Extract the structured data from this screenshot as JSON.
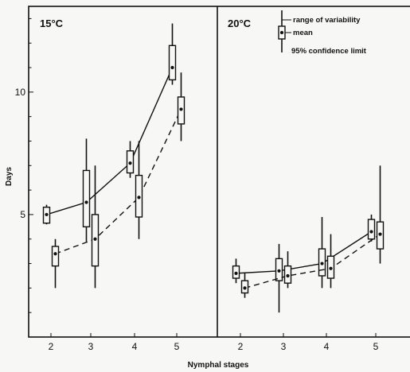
{
  "chart_data": {
    "type": "box",
    "xlabel": "Nymphal stages",
    "ylabel": "Days",
    "categories": [
      "2",
      "3",
      "4",
      "5"
    ],
    "yticks": [
      5,
      10
    ],
    "ylim": [
      0,
      13.5
    ],
    "legend": {
      "placement": "top-right of right panel",
      "range_label": "range of variability",
      "mean_label": "mean",
      "ci_label": "95% confidence limit"
    },
    "panels": [
      {
        "label": "15°C",
        "series": [
          {
            "line": "solid",
            "stats": [
              {
                "stage": "2",
                "min": 4.6,
                "max": 5.4,
                "ci_low": 4.65,
                "ci_high": 5.3,
                "mean": 5.0
              },
              {
                "stage": "3",
                "min": 3.9,
                "max": 8.1,
                "ci_low": 4.5,
                "ci_high": 6.8,
                "mean": 5.5
              },
              {
                "stage": "4",
                "min": 6.5,
                "max": 8.0,
                "ci_low": 6.7,
                "ci_high": 7.6,
                "mean": 7.1
              },
              {
                "stage": "5",
                "min": 10.3,
                "max": 12.8,
                "ci_low": 10.5,
                "ci_high": 11.9,
                "mean": 11.0
              }
            ]
          },
          {
            "line": "dashed",
            "stats": [
              {
                "stage": "2",
                "min": 2.0,
                "max": 4.0,
                "ci_low": 2.9,
                "ci_high": 3.7,
                "mean": 3.4
              },
              {
                "stage": "3",
                "min": 2.0,
                "max": 7.0,
                "ci_low": 2.9,
                "ci_high": 5.0,
                "mean": 4.0
              },
              {
                "stage": "4",
                "min": 4.0,
                "max": 8.0,
                "ci_low": 4.9,
                "ci_high": 6.6,
                "mean": 5.7
              },
              {
                "stage": "5",
                "min": 8.0,
                "max": 10.8,
                "ci_low": 8.7,
                "ci_high": 9.8,
                "mean": 9.3
              }
            ]
          }
        ]
      },
      {
        "label": "20°C",
        "series": [
          {
            "line": "solid",
            "stats": [
              {
                "stage": "2",
                "min": 2.2,
                "max": 3.2,
                "ci_low": 2.4,
                "ci_high": 2.9,
                "mean": 2.6
              },
              {
                "stage": "3",
                "min": 1.0,
                "max": 3.8,
                "ci_low": 2.3,
                "ci_high": 3.2,
                "mean": 2.7
              },
              {
                "stage": "4",
                "min": 2.0,
                "max": 4.9,
                "ci_low": 2.5,
                "ci_high": 3.6,
                "mean": 3.0
              },
              {
                "stage": "5",
                "min": 3.9,
                "max": 5.0,
                "ci_low": 4.0,
                "ci_high": 4.8,
                "mean": 4.3
              }
            ]
          },
          {
            "line": "dashed",
            "stats": [
              {
                "stage": "2",
                "min": 1.6,
                "max": 2.6,
                "ci_low": 1.8,
                "ci_high": 2.3,
                "mean": 2.0
              },
              {
                "stage": "3",
                "min": 2.0,
                "max": 3.5,
                "ci_low": 2.2,
                "ci_high": 2.9,
                "mean": 2.5
              },
              {
                "stage": "4",
                "min": 2.0,
                "max": 4.2,
                "ci_low": 2.4,
                "ci_high": 3.3,
                "mean": 2.8
              },
              {
                "stage": "5",
                "min": 3.0,
                "max": 7.0,
                "ci_low": 3.6,
                "ci_high": 4.7,
                "mean": 4.2
              }
            ]
          }
        ]
      }
    ]
  }
}
